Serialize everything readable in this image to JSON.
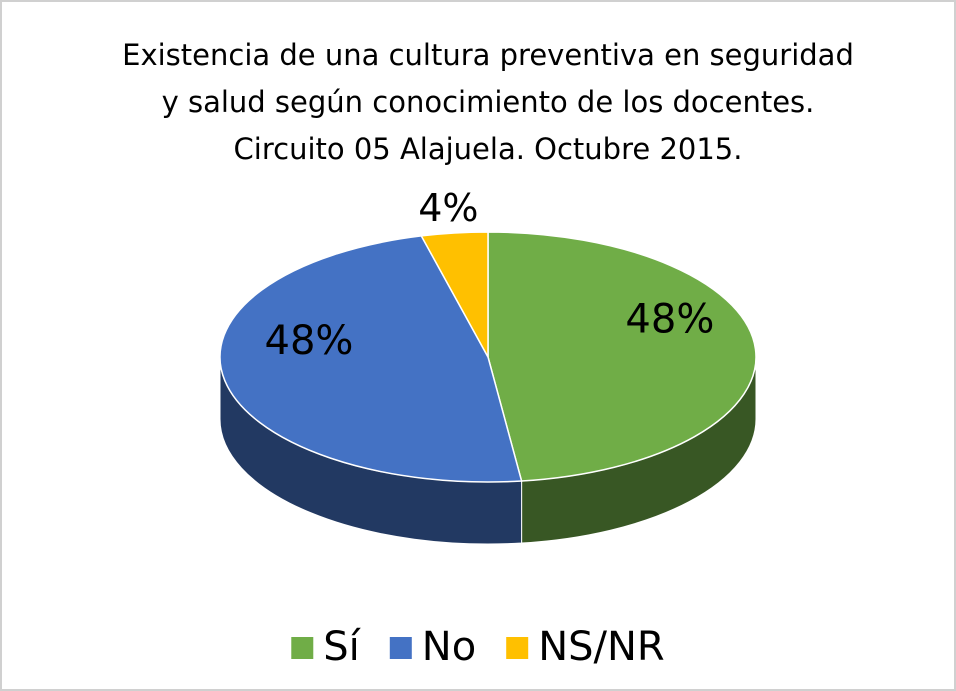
{
  "chart_data": {
    "type": "pie",
    "title": [
      "Existencia de una cultura preventiva en seguridad",
      "y salud según conocimiento de los docentes.",
      "Circuito 05 Alajuela. Octubre 2015."
    ],
    "categories": [
      "Sí",
      "No",
      "NS/NR"
    ],
    "values": [
      48,
      48,
      4
    ],
    "value_labels": [
      "48%",
      "48%",
      "4%"
    ],
    "colors": [
      "#70ad47",
      "#4472c4",
      "#ffc000"
    ],
    "legend": "bottom"
  }
}
